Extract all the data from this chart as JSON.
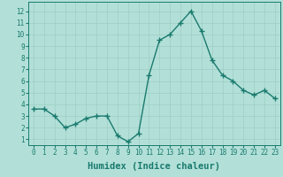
{
  "x": [
    0,
    1,
    2,
    3,
    4,
    5,
    6,
    7,
    8,
    9,
    10,
    11,
    12,
    13,
    14,
    15,
    16,
    17,
    18,
    19,
    20,
    21,
    22,
    23
  ],
  "y": [
    3.6,
    3.6,
    3.0,
    2.0,
    2.3,
    2.8,
    3.0,
    3.0,
    1.3,
    0.8,
    1.5,
    6.5,
    9.5,
    10.0,
    11.0,
    12.0,
    10.3,
    7.8,
    6.5,
    6.0,
    5.2,
    4.8,
    5.2,
    4.5
  ],
  "xlabel": "Humidex (Indice chaleur)",
  "line_color": "#1a7a6e",
  "marker": "+",
  "bg_color": "#b2e0d8",
  "grid_color": "#9ecec5",
  "xlim": [
    -0.5,
    23.5
  ],
  "ylim": [
    0.5,
    12.8
  ],
  "yticks": [
    1,
    2,
    3,
    4,
    5,
    6,
    7,
    8,
    9,
    10,
    11,
    12
  ],
  "xticks": [
    0,
    1,
    2,
    3,
    4,
    5,
    6,
    7,
    8,
    9,
    10,
    11,
    12,
    13,
    14,
    15,
    16,
    17,
    18,
    19,
    20,
    21,
    22,
    23
  ],
  "tick_label_fontsize": 5.5,
  "xlabel_fontsize": 7.5,
  "linewidth": 1.0,
  "markersize": 4,
  "markeredgewidth": 1.0
}
